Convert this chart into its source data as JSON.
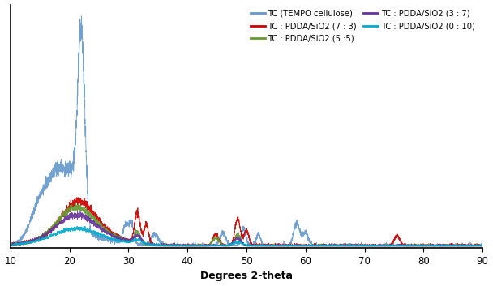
{
  "xlabel": "Degrees 2-theta",
  "xlim": [
    10,
    90
  ],
  "legend_entries": [
    {
      "label": "TC (TEMPO cellulose)",
      "color": "#6699CC"
    },
    {
      "label": "TC : PDDA/SiO2 (7 : 3)",
      "color": "#CC0000"
    },
    {
      "label": "TC : PDDA/SiO2 (5 :5)",
      "color": "#669933"
    },
    {
      "label": "TC : PDDA/SiO2 (3 : 7)",
      "color": "#663399"
    },
    {
      "label": "TC : PDDA/SiO2 (0 : 10)",
      "color": "#00AACC"
    }
  ],
  "xticks": [
    10,
    20,
    30,
    40,
    50,
    60,
    70,
    80,
    90
  ],
  "seed": 42
}
